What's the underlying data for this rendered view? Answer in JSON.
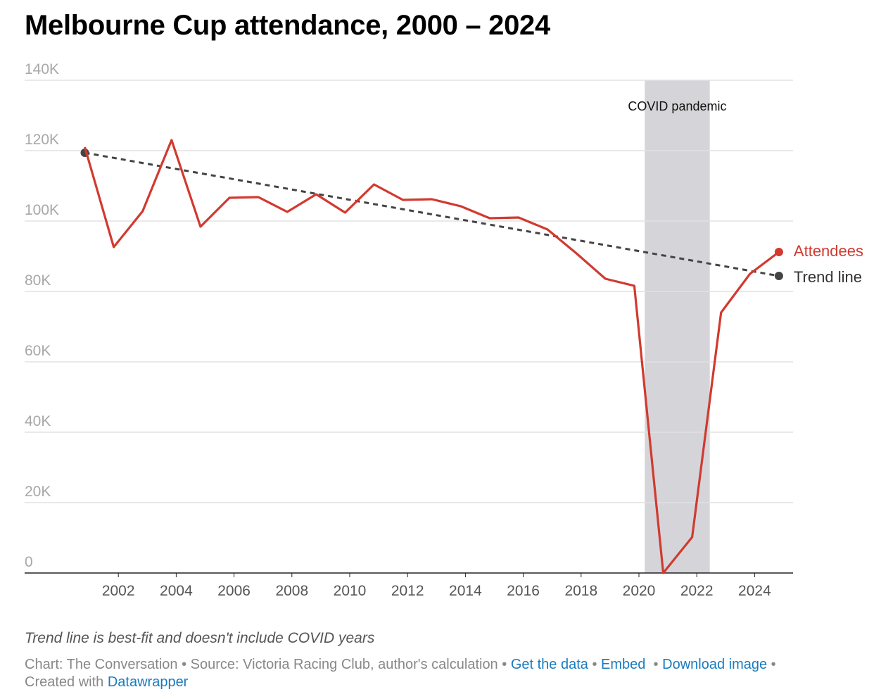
{
  "title": "Melbourne Cup attendance, 2000 – 2024",
  "chart_data": {
    "type": "line",
    "title": "Melbourne Cup attendance, 2000 – 2024",
    "xlabel": "",
    "ylabel": "",
    "x_tick_labels": [
      "2002",
      "2004",
      "2006",
      "2008",
      "2010",
      "2012",
      "2014",
      "2016",
      "2018",
      "2020",
      "2022",
      "2024"
    ],
    "y_tick_labels": [
      "0",
      "20K",
      "40K",
      "60K",
      "80K",
      "100K",
      "120K",
      "140K"
    ],
    "y_ticks": [
      0,
      20000,
      40000,
      60000,
      80000,
      100000,
      120000,
      140000
    ],
    "x_ticks": [
      2002,
      2004,
      2006,
      2008,
      2010,
      2012,
      2014,
      2016,
      2018,
      2020,
      2022,
      2024
    ],
    "ylim": [
      0,
      140000
    ],
    "xlim": [
      2000,
      2025
    ],
    "grid": true,
    "series": [
      {
        "name": "Attendees",
        "color": "#d13a2f",
        "x": [
          2000,
          2001,
          2002,
          2003,
          2004,
          2005,
          2006,
          2007,
          2008,
          2009,
          2010,
          2011,
          2012,
          2013,
          2014,
          2015,
          2016,
          2017,
          2018,
          2019,
          2020,
          2021,
          2022,
          2023,
          2024
        ],
        "values": [
          121000,
          92600,
          102800,
          123000,
          98400,
          106600,
          106800,
          102600,
          107600,
          102400,
          110400,
          106000,
          106200,
          104200,
          100800,
          101000,
          97600,
          90800,
          83600,
          81600,
          0,
          10200,
          74000,
          85000,
          91200
        ]
      },
      {
        "name": "Trend line",
        "color": "#444444",
        "style": "dashed",
        "x": [
          2000,
          2024
        ],
        "values": [
          119400,
          84400
        ]
      }
    ],
    "annotations": [
      {
        "type": "band",
        "label": "COVID pandemic",
        "x_start": 2020.2,
        "x_end": 2022.45,
        "color": "#d5d5d9"
      }
    ],
    "legend": "direct-labels-right"
  },
  "note": "Trend line is best-fit and doesn't include COVID years",
  "footer": {
    "chart_credit": "Chart: The Conversation",
    "source": "Source: Victoria Racing Club, author's calculation",
    "get_data": "Get the data",
    "embed": "Embed",
    "download": "Download image",
    "created_with": "Created with",
    "datawrapper": "Datawrapper",
    "bullet": "•"
  }
}
